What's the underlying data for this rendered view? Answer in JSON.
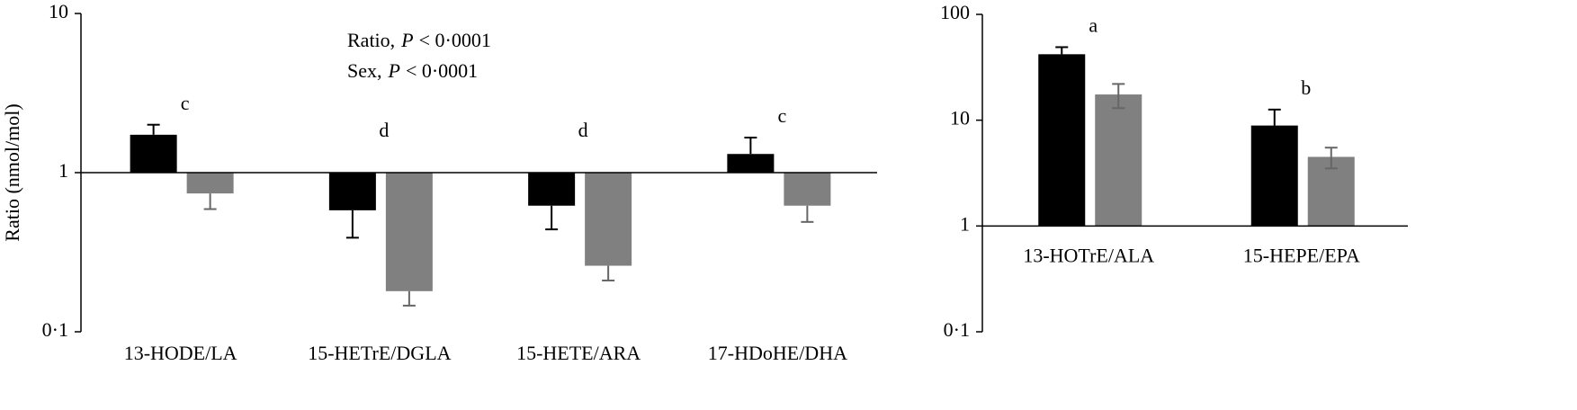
{
  "chart_data": [
    {
      "type": "bar",
      "log_scale": true,
      "baseline": 1,
      "y_label": "Ratio (nmol/mol)",
      "stats": [
        {
          "label": "Ratio,",
          "symbol": "P",
          "text": "< 0·0001"
        },
        {
          "label": "Sex,",
          "symbol": "P",
          "text": "< 0·0001"
        }
      ],
      "categories": [
        "13-HODE/LA",
        "15-HETrE/DGLA",
        "15-HETE/ARA",
        "17-HDoHE/DHA"
      ],
      "letters": [
        "c",
        "d",
        "d",
        "c"
      ],
      "series": [
        {
          "color": "#000000",
          "values": [
            1.73,
            0.58,
            0.62,
            1.31
          ],
          "errors": [
            0.27,
            0.19,
            0.18,
            0.35
          ]
        },
        {
          "color": "#808080",
          "values": [
            0.74,
            0.18,
            0.26,
            0.62
          ],
          "errors": [
            0.15,
            0.034,
            0.05,
            0.13
          ]
        }
      ],
      "ylim": [
        0.1,
        10
      ],
      "yticks": [
        {
          "value": 0.1,
          "label": "0·1"
        },
        1,
        10
      ]
    },
    {
      "type": "bar",
      "log_scale": true,
      "baseline": 1,
      "categories": [
        "13-HOTrE/ALA",
        "15-HEPE/EPA"
      ],
      "letters": [
        "a",
        "b"
      ],
      "series": [
        {
          "color": "#000000",
          "values": [
            42,
            8.9
          ],
          "errors": [
            7,
            3.7
          ]
        },
        {
          "color": "#808080",
          "values": [
            17.5,
            4.5
          ],
          "errors": [
            4.5,
            1.0
          ]
        }
      ],
      "ylim": [
        0.1,
        100
      ],
      "yticks": [
        {
          "value": 0.1,
          "label": "0·1"
        },
        1,
        10,
        100
      ]
    }
  ]
}
